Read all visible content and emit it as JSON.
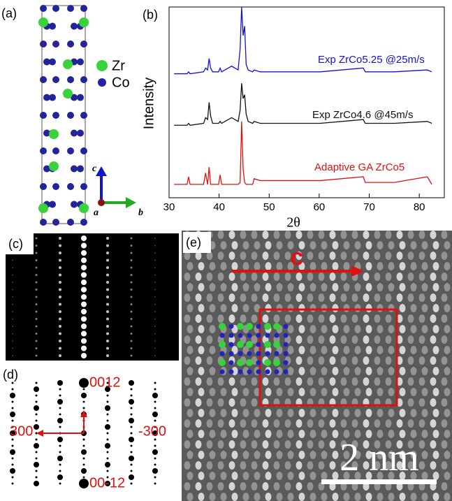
{
  "panels": {
    "a": {
      "label": "(a)",
      "legend": [
        "Zr",
        "Co"
      ],
      "axes": [
        "c",
        "a",
        "b"
      ]
    },
    "c": {
      "label": "(c)"
    },
    "d": {
      "label": "(d)",
      "spots": [
        "0012",
        "300",
        "-300",
        "00-12"
      ]
    },
    "e": {
      "label": "(e)",
      "direction": "c",
      "scale": "2 nm"
    }
  },
  "chart_data": {
    "type": "line",
    "label": "(b)",
    "x_label": "2θ",
    "y_label": "Intensity",
    "x": [
      31,
      33.6,
      33.9,
      34.2,
      36.9,
      37.3,
      37.7,
      38.0,
      38.3,
      38.7,
      39.9,
      40.2,
      40.5,
      42.5,
      43.8,
      44.2,
      44.5,
      44.8,
      45.1,
      45.4,
      45.8,
      46.7,
      47.0,
      48.2,
      51.3,
      60.2,
      68.8,
      69.2,
      75,
      81.6,
      82.5
    ],
    "series": [
      {
        "name": "Exp ZrCo5.25 @25m/s",
        "color": "#1010e0",
        "values": [
          6.5,
          6.5,
          6.6,
          6.5,
          6.6,
          6.8,
          6.7,
          7.3,
          6.8,
          6.6,
          6.6,
          6.8,
          6.6,
          6.9,
          6.7,
          7.8,
          10,
          8.5,
          9.0,
          7.0,
          6.7,
          6.6,
          6.7,
          6.6,
          6.6,
          6.6,
          6.8,
          6.6,
          6.6,
          6.7,
          6.6
        ]
      },
      {
        "name": "Exp ZrCo4.6 @45m/s",
        "color": "#111111",
        "values": [
          3.8,
          3.8,
          3.9,
          3.8,
          3.9,
          4.2,
          4.1,
          5.0,
          4.3,
          3.9,
          3.9,
          4.0,
          3.9,
          4.2,
          4.0,
          4.6,
          6.0,
          5.2,
          5.4,
          4.4,
          4.0,
          3.9,
          4.0,
          3.9,
          3.9,
          3.9,
          4.1,
          3.9,
          3.9,
          4.0,
          3.9
        ]
      },
      {
        "name": "Adaptive GA ZrCo5",
        "color": "#e01010",
        "values": [
          0.7,
          0.7,
          1.1,
          0.7,
          0.7,
          1.3,
          0.7,
          1.6,
          0.7,
          0.7,
          0.7,
          1.2,
          0.7,
          0.7,
          0.7,
          0.8,
          4.0,
          1.5,
          0.8,
          0.7,
          0.7,
          0.7,
          1.0,
          0.9,
          0.9,
          0.9,
          1.1,
          0.8,
          0.8,
          1.1,
          0.7
        ]
      }
    ],
    "xlim": [
      30,
      85
    ],
    "xticks": [
      30,
      40,
      50,
      60,
      70,
      80
    ],
    "ylim": [
      0,
      10
    ]
  }
}
